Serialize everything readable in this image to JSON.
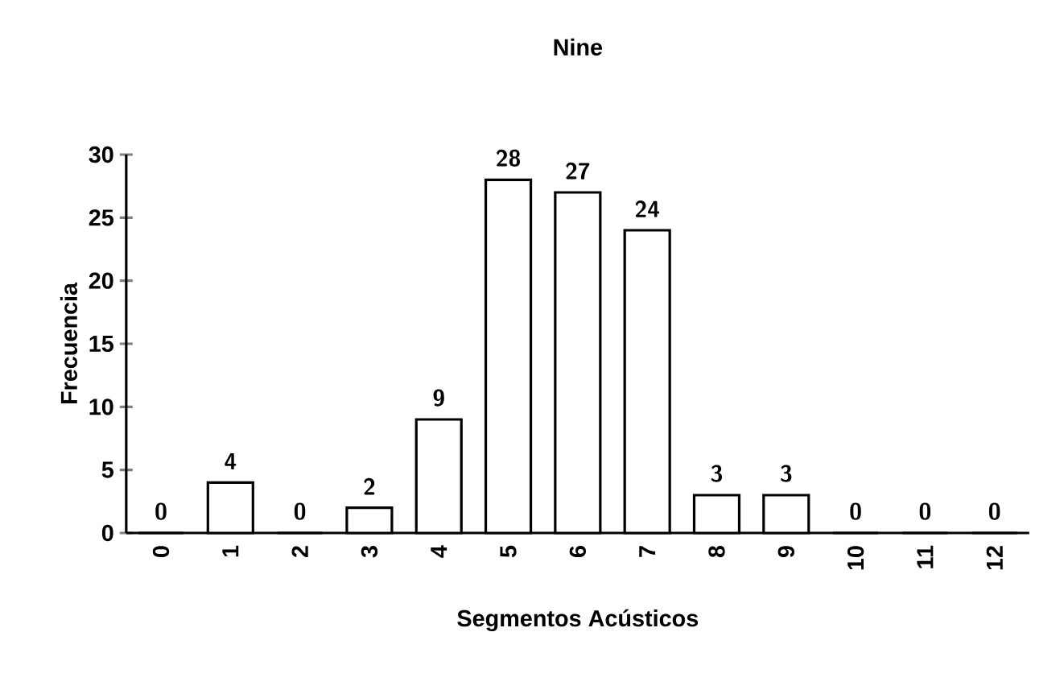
{
  "chart_data": {
    "type": "bar",
    "title": "Nine",
    "xlabel": "Segmentos Acústicos",
    "ylabel": "Frecuencia",
    "categories": [
      "0",
      "1",
      "2",
      "3",
      "4",
      "5",
      "6",
      "7",
      "8",
      "9",
      "10",
      "11",
      "12"
    ],
    "values": [
      0,
      4,
      0,
      2,
      9,
      28,
      27,
      24,
      3,
      3,
      0,
      0,
      0
    ],
    "color": "#ffffff",
    "ylim": [
      0,
      30
    ],
    "yticks": [
      0,
      5,
      10,
      15,
      20,
      25,
      30
    ],
    "data_labels": true
  }
}
